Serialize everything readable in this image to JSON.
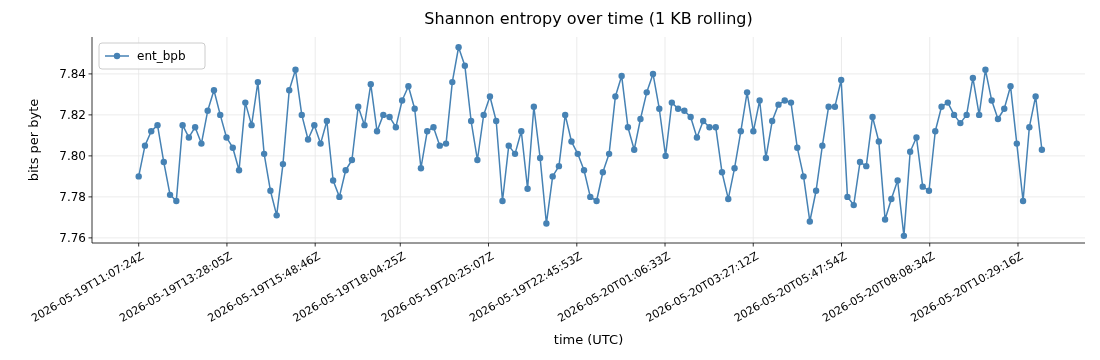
{
  "chart_data": {
    "type": "line",
    "title": "Shannon entropy over time (1 KB rolling)",
    "xlabel": "time (UTC)",
    "ylabel": "bits per byte",
    "x": [
      "2026-05-19T11:07:24",
      "2026-05-19T11:17:24",
      "2026-05-19T11:27:24",
      "2026-05-19T11:37:24",
      "2026-05-19T11:47:24",
      "2026-05-19T11:57:24",
      "2026-05-19T12:07:24",
      "2026-05-19T12:17:24",
      "2026-05-19T12:27:24",
      "2026-05-19T12:37:24",
      "2026-05-19T12:47:24",
      "2026-05-19T12:57:24",
      "2026-05-19T13:07:24",
      "2026-05-19T13:17:24",
      "2026-05-19T13:27:24",
      "2026-05-19T13:37:24",
      "2026-05-19T13:47:24",
      "2026-05-19T13:57:24",
      "2026-05-19T14:07:24",
      "2026-05-19T14:17:24",
      "2026-05-19T14:27:24",
      "2026-05-19T14:37:24",
      "2026-05-19T14:47:24",
      "2026-05-19T14:57:24",
      "2026-05-19T15:07:24",
      "2026-05-19T15:17:24",
      "2026-05-19T15:27:24",
      "2026-05-19T15:37:24",
      "2026-05-19T15:47:24",
      "2026-05-19T15:57:24",
      "2026-05-19T16:07:24",
      "2026-05-19T16:17:24",
      "2026-05-19T16:27:24",
      "2026-05-19T16:37:24",
      "2026-05-19T16:47:24",
      "2026-05-19T16:57:24",
      "2026-05-19T17:07:24",
      "2026-05-19T17:17:24",
      "2026-05-19T17:27:24",
      "2026-05-19T17:37:24",
      "2026-05-19T17:47:24",
      "2026-05-19T17:57:24",
      "2026-05-19T18:07:24",
      "2026-05-19T18:17:24",
      "2026-05-19T18:27:24",
      "2026-05-19T18:37:24",
      "2026-05-19T18:47:24",
      "2026-05-19T18:57:24",
      "2026-05-19T19:07:24",
      "2026-05-19T19:17:24",
      "2026-05-19T19:27:24",
      "2026-05-19T19:37:24",
      "2026-05-19T19:47:24",
      "2026-05-19T19:57:24",
      "2026-05-19T20:07:24",
      "2026-05-19T20:17:24",
      "2026-05-19T20:27:24",
      "2026-05-19T20:37:24",
      "2026-05-19T20:47:24",
      "2026-05-19T20:57:24",
      "2026-05-19T21:07:24",
      "2026-05-19T21:17:24",
      "2026-05-19T21:27:24",
      "2026-05-19T21:37:24",
      "2026-05-19T21:47:24",
      "2026-05-19T21:57:24",
      "2026-05-19T22:07:24",
      "2026-05-19T22:17:24",
      "2026-05-19T22:27:24",
      "2026-05-19T22:37:24",
      "2026-05-19T22:47:24",
      "2026-05-19T22:57:24",
      "2026-05-19T23:07:24",
      "2026-05-19T23:17:24",
      "2026-05-19T23:27:24",
      "2026-05-19T23:37:24",
      "2026-05-19T23:47:24",
      "2026-05-19T23:57:24",
      "2026-05-20T00:07:24",
      "2026-05-20T00:17:24",
      "2026-05-20T00:27:24",
      "2026-05-20T00:37:24",
      "2026-05-20T00:47:24",
      "2026-05-20T00:57:24",
      "2026-05-20T01:07:24",
      "2026-05-20T01:17:24",
      "2026-05-20T01:27:24",
      "2026-05-20T01:37:24",
      "2026-05-20T01:47:24",
      "2026-05-20T01:57:24",
      "2026-05-20T02:07:24",
      "2026-05-20T02:17:24",
      "2026-05-20T02:27:24",
      "2026-05-20T02:37:24",
      "2026-05-20T02:47:24",
      "2026-05-20T02:57:24",
      "2026-05-20T03:07:24",
      "2026-05-20T03:17:24",
      "2026-05-20T03:27:24",
      "2026-05-20T03:37:24",
      "2026-05-20T03:47:24",
      "2026-05-20T03:57:24",
      "2026-05-20T04:07:24",
      "2026-05-20T04:17:24",
      "2026-05-20T04:27:24",
      "2026-05-20T04:37:24",
      "2026-05-20T04:47:24",
      "2026-05-20T04:57:24",
      "2026-05-20T05:07:24",
      "2026-05-20T05:17:24",
      "2026-05-20T05:27:24",
      "2026-05-20T05:37:24",
      "2026-05-20T05:47:24",
      "2026-05-20T05:57:24",
      "2026-05-20T06:07:24",
      "2026-05-20T06:17:24",
      "2026-05-20T06:27:24",
      "2026-05-20T06:37:24",
      "2026-05-20T06:47:24",
      "2026-05-20T06:57:24",
      "2026-05-20T07:07:24",
      "2026-05-20T07:17:24",
      "2026-05-20T07:27:24",
      "2026-05-20T07:37:24",
      "2026-05-20T07:47:24",
      "2026-05-20T07:57:24",
      "2026-05-20T08:07:24",
      "2026-05-20T08:17:24",
      "2026-05-20T08:27:24",
      "2026-05-20T08:37:24",
      "2026-05-20T08:47:24",
      "2026-05-20T08:57:24",
      "2026-05-20T09:07:24",
      "2026-05-20T09:17:24",
      "2026-05-20T09:27:24",
      "2026-05-20T09:37:24",
      "2026-05-20T09:47:24",
      "2026-05-20T09:57:24",
      "2026-05-20T10:07:24",
      "2026-05-20T10:17:24",
      "2026-05-20T10:27:24",
      "2026-05-20T10:37:24",
      "2026-05-20T10:47:24",
      "2026-05-20T10:57:24",
      "2026-05-20T11:07:24"
    ],
    "series": [
      {
        "name": "ent_bpb",
        "color": "#4682b4",
        "values": [
          7.79,
          7.805,
          7.812,
          7.815,
          7.797,
          7.781,
          7.778,
          7.815,
          7.809,
          7.814,
          7.806,
          7.822,
          7.832,
          7.82,
          7.809,
          7.804,
          7.793,
          7.826,
          7.815,
          7.836,
          7.801,
          7.783,
          7.771,
          7.796,
          7.832,
          7.842,
          7.82,
          7.808,
          7.815,
          7.806,
          7.817,
          7.788,
          7.78,
          7.793,
          7.798,
          7.824,
          7.815,
          7.835,
          7.812,
          7.82,
          7.819,
          7.814,
          7.827,
          7.834,
          7.823,
          7.794,
          7.812,
          7.814,
          7.805,
          7.806,
          7.836,
          7.853,
          7.844,
          7.817,
          7.798,
          7.82,
          7.829,
          7.817,
          7.778,
          7.805,
          7.801,
          7.812,
          7.784,
          7.824,
          7.799,
          7.767,
          7.79,
          7.795,
          7.82,
          7.807,
          7.801,
          7.793,
          7.78,
          7.778,
          7.792,
          7.801,
          7.829,
          7.839,
          7.814,
          7.803,
          7.818,
          7.831,
          7.84,
          7.823,
          7.8,
          7.826,
          7.823,
          7.822,
          7.819,
          7.809,
          7.817,
          7.814,
          7.814,
          7.792,
          7.779,
          7.794,
          7.812,
          7.831,
          7.812,
          7.827,
          7.799,
          7.817,
          7.825,
          7.827,
          7.826,
          7.804,
          7.79,
          7.768,
          7.783,
          7.805,
          7.824,
          7.824,
          7.837,
          7.78,
          7.776,
          7.797,
          7.795,
          7.819,
          7.807,
          7.769,
          7.779,
          7.788,
          7.761,
          7.802,
          7.809,
          7.785,
          7.783,
          7.812,
          7.824,
          7.826,
          7.82,
          7.816,
          7.82,
          7.838,
          7.82,
          7.842,
          7.827,
          7.818,
          7.823,
          7.834,
          7.806,
          7.778,
          7.814,
          7.829,
          7.803
        ]
      }
    ],
    "xlim": [
      "2026-05-19T09:52:57",
      "2026-05-20T12:16:08"
    ],
    "xticks": [
      {
        "value": "2026-05-19T11:07:24",
        "label": "2026-05-19T11:07:24Z"
      },
      {
        "value": "2026-05-19T13:28:05",
        "label": "2026-05-19T13:28:05Z"
      },
      {
        "value": "2026-05-19T15:48:46",
        "label": "2026-05-19T15:48:46Z"
      },
      {
        "value": "2026-05-19T18:04:25",
        "label": "2026-05-19T18:04:25Z"
      },
      {
        "value": "2026-05-19T20:25:07",
        "label": "2026-05-19T20:25:07Z"
      },
      {
        "value": "2026-05-19T22:45:53",
        "label": "2026-05-19T22:45:53Z"
      },
      {
        "value": "2026-05-20T01:06:33",
        "label": "2026-05-20T01:06:33Z"
      },
      {
        "value": "2026-05-20T03:27:12",
        "label": "2026-05-20T03:27:12Z"
      },
      {
        "value": "2026-05-20T05:47:54",
        "label": "2026-05-20T05:47:54Z"
      },
      {
        "value": "2026-05-20T08:08:34",
        "label": "2026-05-20T08:08:34Z"
      },
      {
        "value": "2026-05-20T10:29:16",
        "label": "2026-05-20T10:29:16Z"
      }
    ],
    "ylim": [
      7.7575,
      7.858
    ],
    "yticks": [
      7.76,
      7.78,
      {
        "value": 7.8,
        "label": "7.80"
      },
      7.82,
      7.84
    ],
    "grid": true,
    "legend": "top left",
    "marker": "circle",
    "line_style": "solid"
  }
}
